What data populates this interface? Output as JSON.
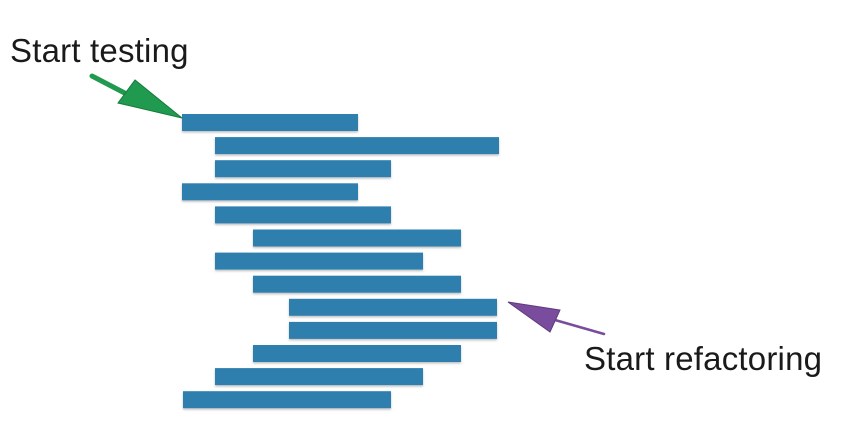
{
  "labels": {
    "start_testing": "Start testing",
    "start_refactoring": "Start refactoring"
  },
  "colors": {
    "bar": "#2e7fae",
    "bar_shadow": "#1f5f86",
    "testing_arrow": "#1f9a4e",
    "refactoring_arrow": "#7a4c9e"
  },
  "icons": {
    "testing_pointer": "green-arrow-icon",
    "refactoring_pointer": "purple-arrow-icon"
  },
  "bar_count": 13
}
